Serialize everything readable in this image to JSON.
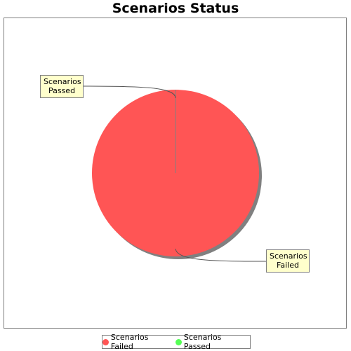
{
  "chart_data": {
    "type": "pie",
    "title": "Scenarios Status",
    "categories": [
      "Scenarios Failed",
      "Scenarios Passed"
    ],
    "values": [
      100,
      0
    ],
    "colors": [
      "#ff5555",
      "#55ff55"
    ],
    "labels": {
      "passed": [
        "Scenarios",
        "Passed"
      ],
      "failed": [
        "Scenarios",
        "Failed"
      ]
    },
    "legend": [
      {
        "label": "Scenarios Failed",
        "color": "#ff5555"
      },
      {
        "label": "Scenarios Passed",
        "color": "#55ff55"
      }
    ],
    "legend_position": "bottom"
  }
}
